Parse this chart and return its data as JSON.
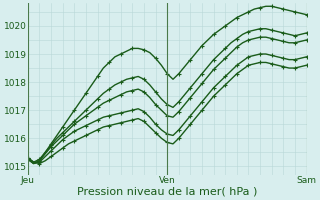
{
  "title": "",
  "xlabel": "Pression niveau de la mer( hPa )",
  "ylabel": "",
  "bg_color": "#d8eeee",
  "grid_color": "#b8d8d8",
  "line_color": "#1a5c1a",
  "ylim": [
    1014.7,
    1020.8
  ],
  "day_labels": [
    "Jeu",
    "Ven",
    "Sam"
  ],
  "day_positions": [
    0,
    24,
    48
  ],
  "series": {
    "line1": [
      1015.3,
      1015.1,
      1015.2,
      1015.5,
      1015.8,
      1016.1,
      1016.4,
      1016.7,
      1017.0,
      1017.3,
      1017.6,
      1017.9,
      1018.2,
      1018.5,
      1018.7,
      1018.9,
      1019.0,
      1019.1,
      1019.2,
      1019.2,
      1019.15,
      1019.05,
      1018.85,
      1018.6,
      1018.3,
      1018.1,
      1018.3,
      1018.55,
      1018.8,
      1019.05,
      1019.3,
      1019.5,
      1019.7,
      1019.85,
      1020.0,
      1020.15,
      1020.3,
      1020.4,
      1020.5,
      1020.6,
      1020.65,
      1020.7,
      1020.7,
      1020.65,
      1020.6,
      1020.55,
      1020.5,
      1020.45,
      1020.4
    ],
    "line2": [
      1015.3,
      1015.15,
      1015.25,
      1015.5,
      1015.75,
      1016.0,
      1016.2,
      1016.4,
      1016.6,
      1016.8,
      1017.0,
      1017.2,
      1017.4,
      1017.6,
      1017.75,
      1017.9,
      1018.0,
      1018.1,
      1018.15,
      1018.2,
      1018.1,
      1017.9,
      1017.65,
      1017.4,
      1017.2,
      1017.1,
      1017.3,
      1017.55,
      1017.8,
      1018.05,
      1018.3,
      1018.55,
      1018.8,
      1019.0,
      1019.2,
      1019.4,
      1019.55,
      1019.7,
      1019.8,
      1019.85,
      1019.9,
      1019.9,
      1019.85,
      1019.8,
      1019.75,
      1019.7,
      1019.65,
      1019.7,
      1019.75
    ],
    "line3": [
      1015.25,
      1015.1,
      1015.2,
      1015.45,
      1015.7,
      1015.9,
      1016.1,
      1016.3,
      1016.5,
      1016.65,
      1016.8,
      1016.95,
      1017.1,
      1017.25,
      1017.35,
      1017.45,
      1017.55,
      1017.65,
      1017.7,
      1017.75,
      1017.65,
      1017.45,
      1017.2,
      1017.0,
      1016.8,
      1016.75,
      1016.95,
      1017.2,
      1017.45,
      1017.7,
      1017.95,
      1018.2,
      1018.45,
      1018.65,
      1018.85,
      1019.05,
      1019.25,
      1019.4,
      1019.5,
      1019.55,
      1019.6,
      1019.6,
      1019.55,
      1019.5,
      1019.45,
      1019.4,
      1019.4,
      1019.45,
      1019.5
    ],
    "line4": [
      1015.25,
      1015.1,
      1015.15,
      1015.35,
      1015.55,
      1015.75,
      1015.95,
      1016.1,
      1016.25,
      1016.35,
      1016.45,
      1016.55,
      1016.65,
      1016.75,
      1016.8,
      1016.85,
      1016.9,
      1016.95,
      1017.0,
      1017.05,
      1016.95,
      1016.75,
      1016.5,
      1016.3,
      1016.15,
      1016.1,
      1016.3,
      1016.55,
      1016.8,
      1017.05,
      1017.3,
      1017.55,
      1017.8,
      1018.0,
      1018.2,
      1018.4,
      1018.6,
      1018.75,
      1018.9,
      1018.95,
      1019.0,
      1019.0,
      1018.95,
      1018.9,
      1018.85,
      1018.8,
      1018.8,
      1018.85,
      1018.9
    ],
    "line5": [
      1015.3,
      1015.15,
      1015.1,
      1015.2,
      1015.35,
      1015.5,
      1015.65,
      1015.8,
      1015.9,
      1016.0,
      1016.1,
      1016.2,
      1016.3,
      1016.4,
      1016.45,
      1016.5,
      1016.55,
      1016.6,
      1016.65,
      1016.7,
      1016.6,
      1016.4,
      1016.2,
      1016.0,
      1015.85,
      1015.8,
      1016.0,
      1016.25,
      1016.5,
      1016.75,
      1017.0,
      1017.25,
      1017.5,
      1017.7,
      1017.9,
      1018.1,
      1018.3,
      1018.45,
      1018.6,
      1018.65,
      1018.7,
      1018.7,
      1018.65,
      1018.6,
      1018.55,
      1018.5,
      1018.5,
      1018.55,
      1018.6
    ]
  },
  "marker_style": "+",
  "marker_size": 3,
  "marker_every": 2,
  "line_width": 1.0,
  "tick_fontsize": 6.5,
  "label_fontsize": 8
}
